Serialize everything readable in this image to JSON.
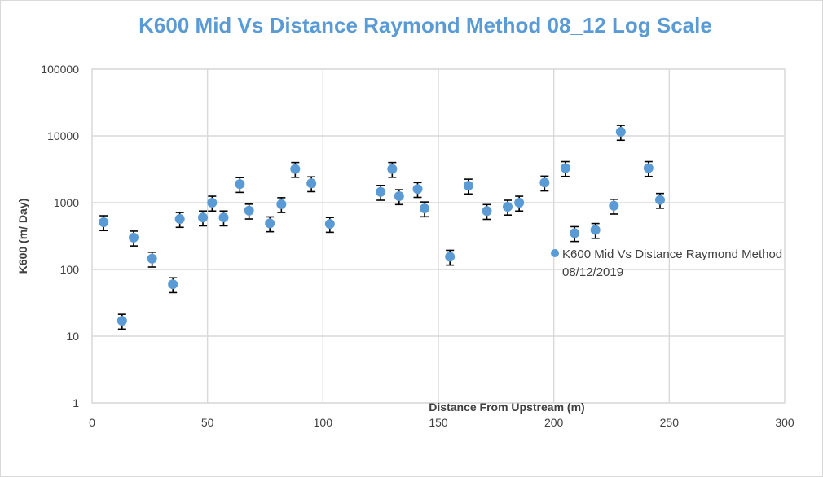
{
  "chart_data": {
    "type": "scatter",
    "title": "K600 Mid Vs Distance Raymond Method 08_12 Log Scale",
    "xlabel": "Distance From Upstream (m)",
    "ylabel": "K600 (m/ Day)",
    "xlim": [
      0,
      300
    ],
    "ylim": [
      1,
      100000
    ],
    "y_scale": "log",
    "x_ticks": [
      "0",
      "50",
      "100",
      "150",
      "200",
      "250",
      "300"
    ],
    "y_ticks": [
      "1",
      "10",
      "100",
      "1000",
      "10000",
      "100000"
    ],
    "grid": true,
    "legend_position": "right, inside plot",
    "point_color": "#5b9bd5",
    "error_bar_color": "#000000",
    "error_bar_fraction": 0.25,
    "series": [
      {
        "name": "K600 Mid Vs Distance Raymond Method 08/12/2019",
        "points": [
          {
            "x": 5,
            "y": 510
          },
          {
            "x": 13,
            "y": 17
          },
          {
            "x": 18,
            "y": 300
          },
          {
            "x": 26,
            "y": 145
          },
          {
            "x": 35,
            "y": 60
          },
          {
            "x": 38,
            "y": 570
          },
          {
            "x": 48,
            "y": 600
          },
          {
            "x": 52,
            "y": 1000
          },
          {
            "x": 57,
            "y": 600
          },
          {
            "x": 64,
            "y": 1900
          },
          {
            "x": 68,
            "y": 760
          },
          {
            "x": 77,
            "y": 490
          },
          {
            "x": 82,
            "y": 950
          },
          {
            "x": 88,
            "y": 3200
          },
          {
            "x": 95,
            "y": 1950
          },
          {
            "x": 103,
            "y": 480
          },
          {
            "x": 125,
            "y": 1450
          },
          {
            "x": 130,
            "y": 3200
          },
          {
            "x": 133,
            "y": 1250
          },
          {
            "x": 141,
            "y": 1600
          },
          {
            "x": 144,
            "y": 820
          },
          {
            "x": 155,
            "y": 155
          },
          {
            "x": 163,
            "y": 1800
          },
          {
            "x": 171,
            "y": 750
          },
          {
            "x": 180,
            "y": 870
          },
          {
            "x": 185,
            "y": 1000
          },
          {
            "x": 196,
            "y": 2000
          },
          {
            "x": 205,
            "y": 3300
          },
          {
            "x": 209,
            "y": 350
          },
          {
            "x": 218,
            "y": 390
          },
          {
            "x": 226,
            "y": 900
          },
          {
            "x": 229,
            "y": 11500
          },
          {
            "x": 241,
            "y": 3300
          },
          {
            "x": 246,
            "y": 1100
          }
        ]
      }
    ]
  }
}
